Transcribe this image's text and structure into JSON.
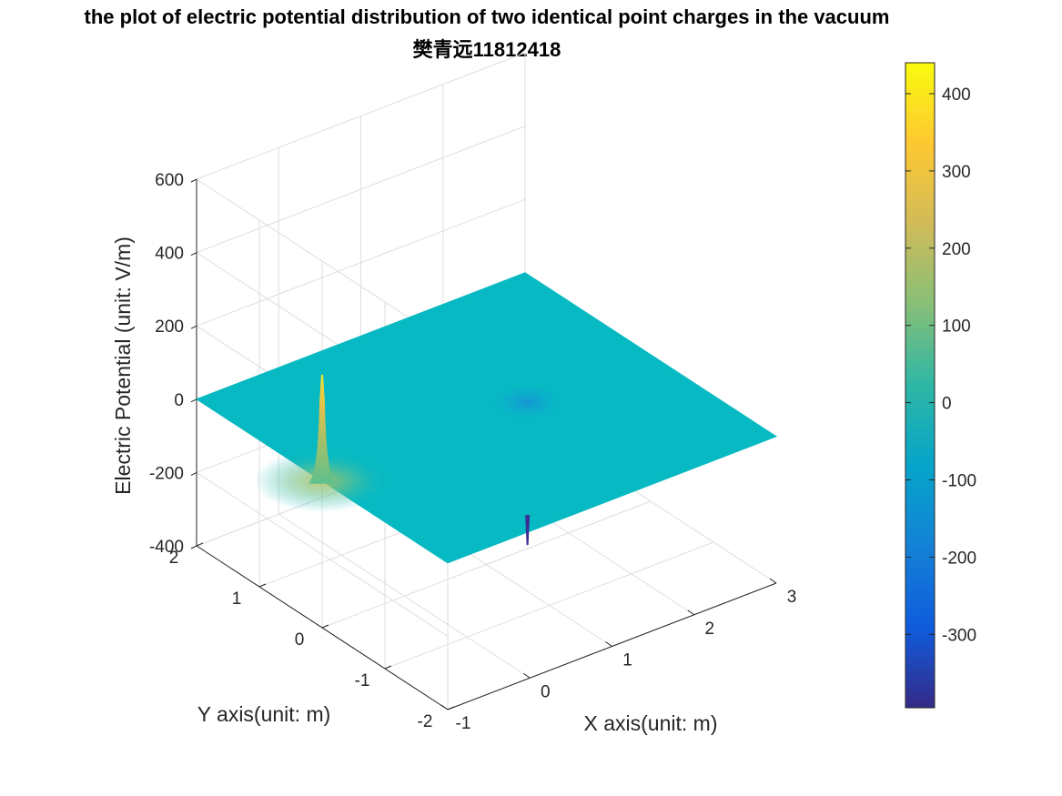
{
  "title_lines": [
    "the plot of electric potential distribution of two identical point charges in the vacuum",
    "樊青远11812418"
  ],
  "chart_data": {
    "type": "surface",
    "title": "the plot of electric potential distribution of two identical point charges in the vacuum 樊青远11812418",
    "xlabel": "X axis(unit: m)",
    "ylabel": "Y axis(unit: m)",
    "zlabel": "Electric Potential (unit: V/m)",
    "xlim": [
      -1,
      3
    ],
    "ylim": [
      -2,
      2
    ],
    "zlim": [
      -400,
      600
    ],
    "x_ticks": [
      "-1",
      "0",
      "1",
      "2",
      "3"
    ],
    "y_ticks": [
      "-2",
      "-1",
      "0",
      "1",
      "2"
    ],
    "z_ticks": [
      "-400",
      "-200",
      "0",
      "200",
      "400",
      "600"
    ],
    "grid": true,
    "view": "3d-isometric",
    "surface_base_value": 0,
    "features": [
      {
        "type": "positive-peak",
        "x": -1,
        "y": 0,
        "z": 290
      },
      {
        "type": "negative-dip",
        "x": 1.5,
        "y": 0,
        "z": -390
      }
    ],
    "colorbar": {
      "placement": "right",
      "min": -395,
      "max": 440,
      "ticks": [
        "400",
        "300",
        "200",
        "100",
        "0",
        "-100",
        "-200",
        "-300"
      ],
      "colormap": "parula",
      "colormap_stops": [
        "#352a87",
        "#0f5cdd",
        "#1481d6",
        "#06a4ca",
        "#2eb7a4",
        "#87bf77",
        "#d1bb59",
        "#fec832",
        "#f9fb0e"
      ]
    }
  }
}
